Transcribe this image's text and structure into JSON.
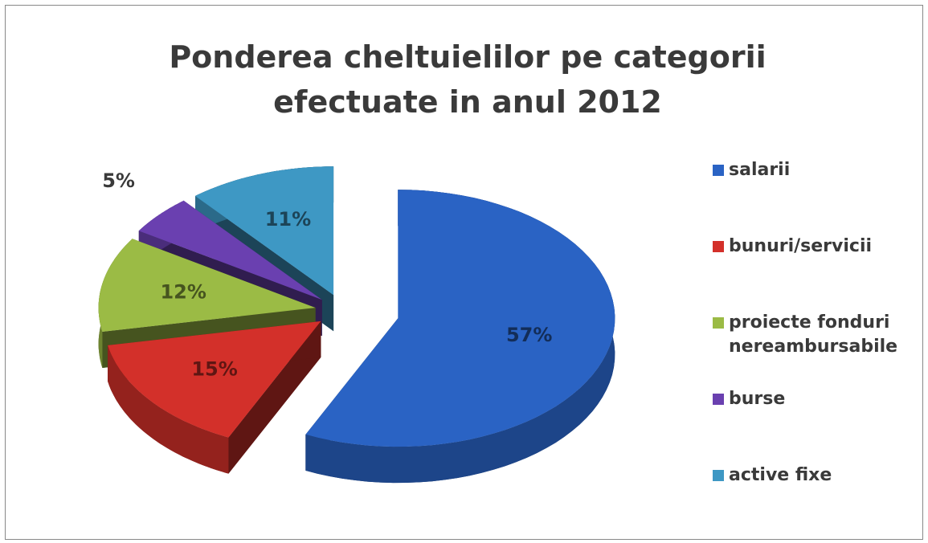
{
  "chart_data": {
    "type": "pie3d",
    "title": "Ponderea cheltuielilor pe categorii efectuate in anul 2012",
    "categories": [
      "salarii",
      "bunuri/servicii",
      "proiecte fonduri nereambursabile",
      "burse",
      "active fixe"
    ],
    "values": [
      57,
      15,
      12,
      5,
      11
    ],
    "value_labels": [
      "57%",
      "15%",
      "12%",
      "5%",
      "11%"
    ],
    "colors": [
      "#2a63c4",
      "#d3302a",
      "#9bbb45",
      "#6a40b0",
      "#3e98c4"
    ],
    "legend": "right"
  }
}
